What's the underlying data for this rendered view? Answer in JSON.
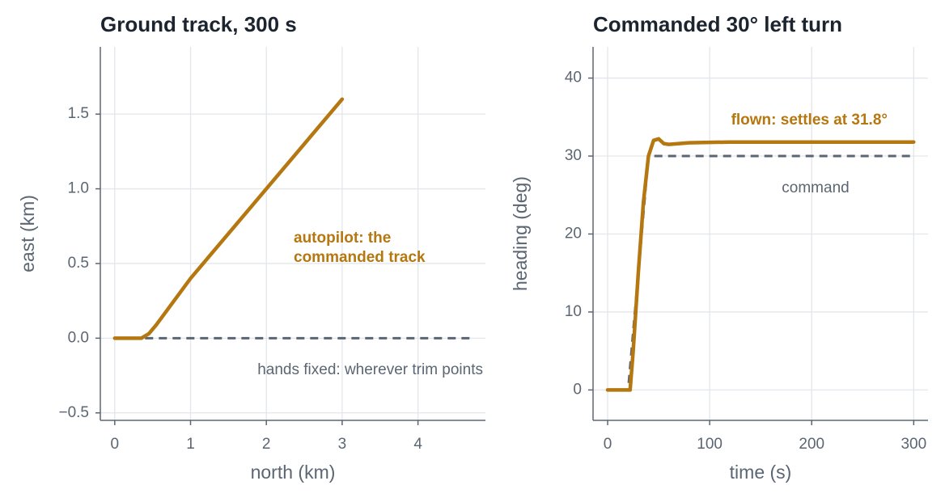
{
  "chart_data": [
    {
      "type": "line",
      "title": "Ground track, 300 s",
      "xlabel": "north (km)",
      "ylabel": "east (km)",
      "xlim": [
        -0.19,
        4.89
      ],
      "ylim": [
        -0.55,
        1.95
      ],
      "xticks": [
        0,
        1,
        2,
        3,
        4
      ],
      "yticks": [
        {
          "value": -0.5,
          "label": "−0.5"
        },
        {
          "value": 0,
          "label": "0.0"
        },
        0.5,
        {
          "value": 1,
          "label": "1.0"
        },
        1.5
      ],
      "grid": true,
      "series": [
        {
          "name": "hands fixed",
          "color": "#5b6673",
          "dashed": true,
          "x": [
            0.4,
            4.7
          ],
          "values": [
            0,
            0
          ]
        },
        {
          "name": "autopilot",
          "color": "#b5770f",
          "dashed": false,
          "x": [
            0,
            0.35,
            0.45,
            0.55,
            1,
            2,
            3
          ],
          "values": [
            0,
            0,
            0.03,
            0.09,
            0.4,
            1.0,
            1.6
          ]
        }
      ],
      "annotations": [
        {
          "text": "autopilot: the",
          "color": "#b5770f",
          "bold": true
        },
        {
          "text": "commanded track",
          "color": "#b5770f",
          "bold": true
        },
        {
          "text": "hands fixed: wherever trim points",
          "color": "#5b6673",
          "bold": false
        }
      ]
    },
    {
      "type": "line",
      "title": "Commanded 30° left turn",
      "xlabel": "time (s)",
      "ylabel": "heading (deg)",
      "xlim": [
        -14.3,
        314
      ],
      "ylim": [
        -3.9,
        44
      ],
      "xticks": [
        0,
        100,
        200,
        300
      ],
      "yticks": [
        0,
        10,
        20,
        30,
        40
      ],
      "grid": true,
      "series": [
        {
          "name": "command",
          "color": "#5b6673",
          "dashed": true,
          "x": [
            0,
            20,
            40,
            300
          ],
          "values": [
            0,
            0,
            30,
            30
          ]
        },
        {
          "name": "flown",
          "color": "#b5770f",
          "dashed": false,
          "x": [
            0,
            22,
            25,
            30,
            35,
            40,
            45,
            50,
            55,
            60,
            80,
            120,
            200,
            300
          ],
          "values": [
            0,
            0,
            5,
            15,
            24,
            30,
            32,
            32.2,
            31.6,
            31.5,
            31.7,
            31.8,
            31.8,
            31.8
          ]
        }
      ],
      "annotations": [
        {
          "text": "flown: settles at 31.8°",
          "color": "#b5770f",
          "bold": true
        },
        {
          "text": "command",
          "color": "#5b6673",
          "bold": false
        }
      ]
    }
  ]
}
